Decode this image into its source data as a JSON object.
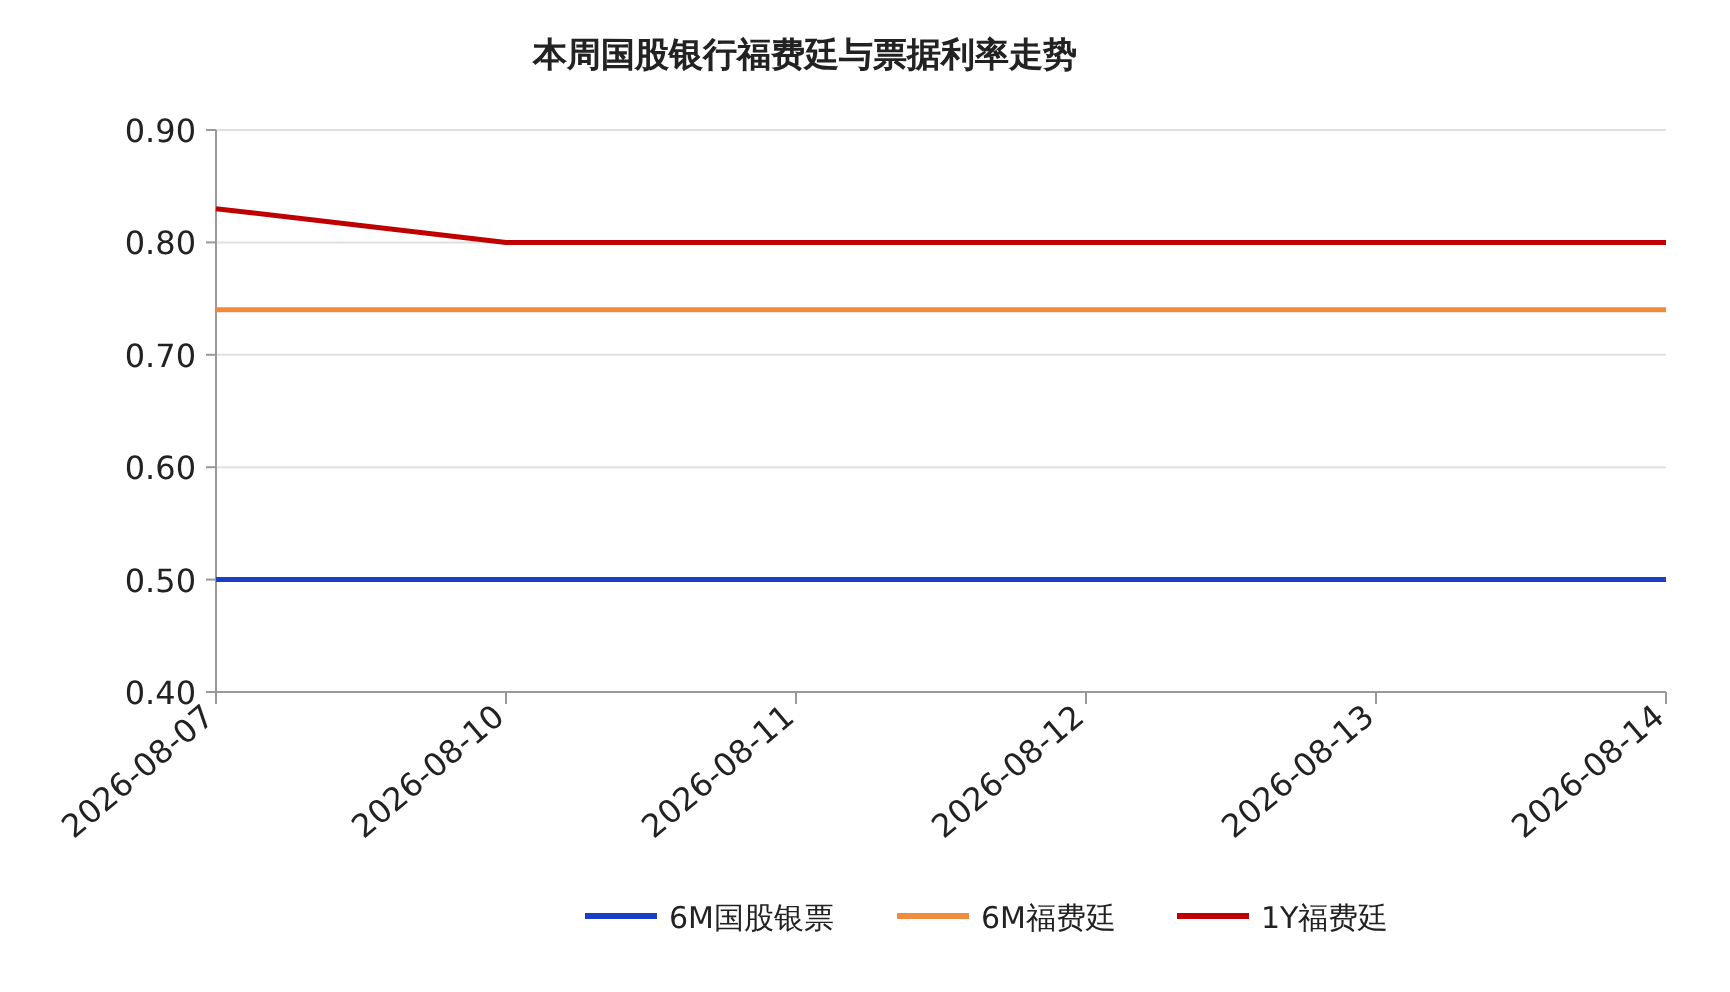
{
  "chart_data": {
    "type": "line",
    "title": "本周国股银行福费廷与票据利率走势",
    "categories": [
      "2026-08-07",
      "2026-08-10",
      "2026-08-11",
      "2026-08-12",
      "2026-08-13",
      "2026-08-14"
    ],
    "series": [
      {
        "name": "6M国股银票",
        "color": "#1a3fc4",
        "values": [
          0.5,
          0.5,
          0.5,
          0.5,
          0.5,
          0.5
        ]
      },
      {
        "name": "6M福费廷",
        "color": "#f08a3c",
        "values": [
          0.74,
          0.74,
          0.74,
          0.74,
          0.74,
          0.74
        ]
      },
      {
        "name": "1Y福费廷",
        "color": "#c00000",
        "values": [
          0.83,
          0.8,
          0.8,
          0.8,
          0.8,
          0.8
        ]
      }
    ],
    "ylim": [
      0.4,
      0.9
    ],
    "yticks": [
      {
        "value": 0.4,
        "label": "0.40"
      },
      {
        "value": 0.5,
        "label": "0.50"
      },
      {
        "value": 0.6,
        "label": "0.60"
      },
      {
        "value": 0.7,
        "label": "0.70"
      },
      {
        "value": 0.8,
        "label": "0.80"
      },
      {
        "value": 0.9,
        "label": "0.90"
      }
    ],
    "grid": "y",
    "legend": "bottom",
    "marker": "none",
    "line_style": "solid"
  }
}
